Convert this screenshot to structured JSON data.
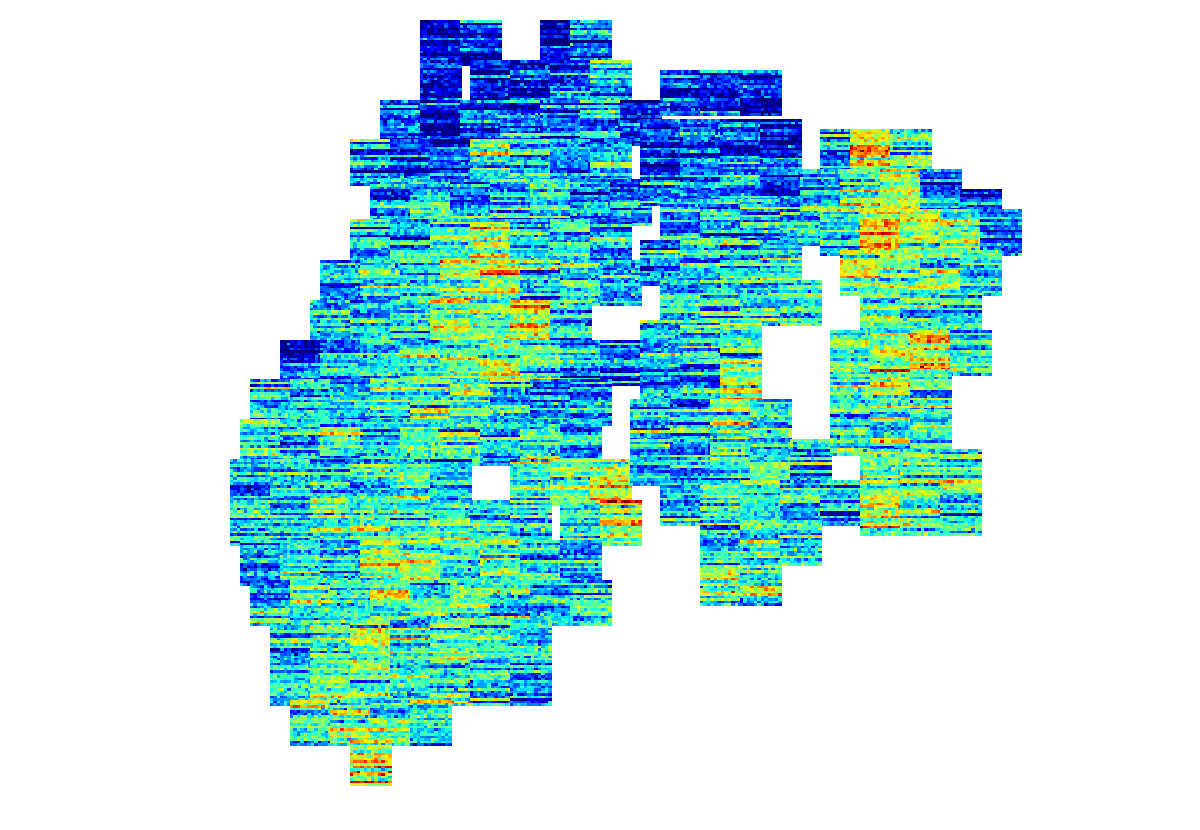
{
  "chart_data": {
    "type": "tile_scatter",
    "tick_labels": false,
    "grid": false,
    "xlim": [
      0,
      120
    ],
    "ylim": [
      83,
      0
    ],
    "x": [
      42,
      46,
      54,
      57,
      42,
      47,
      51,
      55,
      59,
      38,
      42,
      46,
      50,
      54,
      58,
      62,
      35,
      39,
      43,
      47,
      51,
      55,
      59,
      37,
      41,
      45,
      49,
      53,
      57,
      61,
      35,
      39,
      43,
      47,
      51,
      55,
      59,
      32,
      36,
      40,
      44,
      48,
      52,
      56,
      60,
      31,
      35,
      39,
      43,
      47,
      51,
      55,
      28,
      32,
      36,
      40,
      44,
      48,
      52,
      56,
      60,
      25,
      29,
      33,
      37,
      41,
      45,
      49,
      53,
      57,
      24,
      28,
      32,
      36,
      40,
      44,
      48,
      52,
      56,
      23,
      27,
      31,
      35,
      39,
      43,
      51,
      55,
      59,
      23,
      27,
      31,
      35,
      39,
      43,
      47,
      51,
      56,
      60,
      24,
      28,
      32,
      36,
      40,
      44,
      48,
      52,
      56,
      25,
      29,
      33,
      37,
      41,
      45,
      49,
      53,
      57,
      27,
      31,
      35,
      39,
      43,
      47,
      51,
      27,
      31,
      35,
      39,
      43,
      47,
      51,
      29,
      33,
      37,
      41,
      35,
      66,
      70,
      74,
      64,
      68,
      72,
      76,
      64,
      68,
      72,
      76,
      66,
      70,
      74,
      78,
      64,
      68,
      72,
      76,
      66,
      70,
      74,
      78,
      64,
      68,
      72,
      64,
      68,
      72,
      63,
      67,
      71,
      75,
      63,
      67,
      71,
      75,
      79,
      66,
      70,
      74,
      78,
      82,
      70,
      74,
      78,
      70,
      74,
      82,
      85,
      89,
      80,
      84,
      88,
      92,
      96,
      82,
      86,
      90,
      94,
      98,
      84,
      88,
      92,
      96,
      86,
      90,
      94,
      83,
      87,
      91,
      95,
      83,
      87,
      91,
      83,
      87,
      91,
      86,
      90,
      94,
      86,
      90,
      94
    ],
    "y": [
      2,
      2,
      2,
      2,
      6,
      6,
      6,
      6,
      6,
      10,
      10,
      10,
      10,
      10,
      10,
      10,
      14,
      14,
      14,
      14,
      14,
      14,
      14,
      18,
      18,
      18,
      18,
      18,
      18,
      18,
      22,
      22,
      22,
      22,
      22,
      22,
      22,
      26,
      26,
      26,
      26,
      26,
      26,
      26,
      26,
      30,
      30,
      30,
      30,
      30,
      30,
      30,
      34,
      34,
      34,
      34,
      34,
      34,
      34,
      34,
      34,
      38,
      38,
      38,
      38,
      38,
      38,
      38,
      38,
      38,
      42,
      42,
      42,
      42,
      42,
      42,
      42,
      42,
      42,
      46,
      46,
      46,
      46,
      46,
      46,
      46,
      46,
      46,
      50,
      50,
      50,
      50,
      50,
      50,
      50,
      50,
      50,
      50,
      54,
      54,
      54,
      54,
      54,
      54,
      54,
      54,
      54,
      58,
      58,
      58,
      58,
      58,
      58,
      58,
      58,
      58,
      62,
      62,
      62,
      62,
      62,
      62,
      62,
      66,
      66,
      66,
      66,
      66,
      66,
      66,
      70,
      70,
      70,
      70,
      74,
      7,
      7,
      7,
      12,
      12,
      12,
      12,
      16,
      16,
      16,
      16,
      20,
      20,
      20,
      20,
      24,
      24,
      24,
      24,
      28,
      28,
      28,
      28,
      32,
      32,
      32,
      36,
      36,
      36,
      40,
      40,
      40,
      40,
      44,
      44,
      44,
      44,
      44,
      48,
      48,
      48,
      48,
      48,
      52,
      52,
      52,
      56,
      56,
      13,
      13,
      13,
      17,
      17,
      17,
      17,
      19,
      21,
      21,
      21,
      21,
      21,
      25,
      25,
      25,
      25,
      29,
      29,
      29,
      33,
      33,
      33,
      33,
      37,
      37,
      37,
      41,
      41,
      41,
      45,
      45,
      45,
      49,
      49,
      49
    ],
    "values": [
      0.1,
      0.15,
      0.1,
      0.2,
      0.1,
      0.15,
      0.1,
      0.2,
      0.3,
      0.2,
      0.1,
      0.15,
      0.25,
      0.2,
      0.3,
      0.15,
      0.3,
      0.15,
      0.2,
      0.45,
      0.3,
      0.25,
      0.3,
      0.25,
      0.35,
      0.3,
      0.3,
      0.4,
      0.3,
      0.25,
      0.3,
      0.35,
      0.4,
      0.55,
      0.3,
      0.35,
      0.3,
      0.25,
      0.35,
      0.4,
      0.5,
      0.6,
      0.35,
      0.4,
      0.3,
      0.3,
      0.3,
      0.4,
      0.45,
      0.5,
      0.7,
      0.35,
      0.2,
      0.3,
      0.35,
      0.4,
      0.45,
      0.55,
      0.4,
      0.3,
      0.25,
      0.3,
      0.35,
      0.3,
      0.4,
      0.45,
      0.4,
      0.35,
      0.3,
      0.25,
      0.35,
      0.3,
      0.4,
      0.35,
      0.45,
      0.4,
      0.35,
      0.4,
      0.3,
      0.3,
      0.35,
      0.35,
      0.4,
      0.4,
      0.35,
      0.4,
      0.45,
      0.6,
      0.35,
      0.3,
      0.4,
      0.45,
      0.4,
      0.45,
      0.4,
      0.35,
      0.4,
      0.55,
      0.3,
      0.4,
      0.35,
      0.45,
      0.5,
      0.4,
      0.45,
      0.35,
      0.3,
      0.35,
      0.4,
      0.45,
      0.5,
      0.4,
      0.45,
      0.35,
      0.35,
      0.3,
      0.3,
      0.45,
      0.5,
      0.4,
      0.45,
      0.4,
      0.35,
      0.35,
      0.5,
      0.45,
      0.4,
      0.4,
      0.35,
      0.3,
      0.4,
      0.5,
      0.45,
      0.35,
      0.6,
      0.2,
      0.15,
      0.1,
      0.15,
      0.2,
      0.15,
      0.1,
      0.2,
      0.25,
      0.3,
      0.25,
      0.3,
      0.35,
      0.3,
      0.3,
      0.3,
      0.35,
      0.35,
      0.35,
      0.3,
      0.4,
      0.35,
      0.45,
      0.35,
      0.3,
      0.4,
      0.3,
      0.3,
      0.55,
      0.35,
      0.3,
      0.45,
      0.4,
      0.35,
      0.3,
      0.4,
      0.4,
      0.3,
      0.35,
      0.4,
      0.35,
      0.3,
      0.3,
      0.4,
      0.4,
      0.35,
      0.45,
      0.4,
      0.3,
      0.7,
      0.45,
      0.35,
      0.5,
      0.6,
      0.3,
      0.2,
      0.4,
      0.75,
      0.55,
      0.4,
      0.25,
      0.55,
      0.5,
      0.45,
      0.35,
      0.45,
      0.4,
      0.35,
      0.45,
      0.5,
      0.65,
      0.35,
      0.4,
      0.5,
      0.45,
      0.4,
      0.45,
      0.4,
      0.5,
      0.45,
      0.4,
      0.6,
      0.45,
      0.35
    ]
  }
}
